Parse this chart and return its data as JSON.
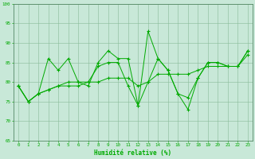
{
  "x": [
    0,
    1,
    2,
    3,
    4,
    5,
    6,
    7,
    8,
    9,
    10,
    11,
    12,
    13,
    14,
    15,
    16,
    17,
    18,
    19,
    20,
    21,
    22,
    23
  ],
  "line1": [
    79,
    75,
    77,
    86,
    83,
    86,
    80,
    79,
    85,
    88,
    86,
    86,
    74,
    93,
    86,
    83,
    77,
    73,
    81,
    85,
    85,
    84,
    84,
    88
  ],
  "line2": [
    79,
    75,
    77,
    78,
    79,
    79,
    79,
    80,
    80,
    81,
    81,
    81,
    79,
    80,
    82,
    82,
    82,
    82,
    83,
    84,
    84,
    84,
    84,
    87
  ],
  "line3": [
    79,
    75,
    77,
    78,
    79,
    80,
    80,
    80,
    84,
    85,
    85,
    79,
    74,
    80,
    86,
    83,
    77,
    76,
    81,
    85,
    85,
    84,
    84,
    88
  ],
  "line_color": "#00aa00",
  "bg_color": "#c8e8d8",
  "grid_color": "#88bb99",
  "xlabel": "Humidité relative (%)",
  "ylim": [
    65,
    100
  ],
  "xlim": [
    -0.5,
    23.5
  ],
  "yticks": [
    65,
    70,
    75,
    80,
    85,
    90,
    95,
    100
  ],
  "xticks": [
    0,
    1,
    2,
    3,
    4,
    5,
    6,
    7,
    8,
    9,
    10,
    11,
    12,
    13,
    14,
    15,
    16,
    17,
    18,
    19,
    20,
    21,
    22,
    23
  ],
  "tick_fontsize": 4.2,
  "ylabel_fontsize": 5.5
}
